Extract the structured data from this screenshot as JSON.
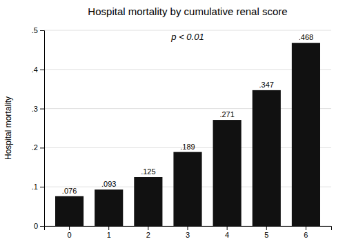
{
  "chart_data": {
    "type": "bar",
    "title": "Hospital mortality by cumulative renal score",
    "ylabel": "Hospital mortality",
    "categories": [
      0,
      1,
      2,
      3,
      4,
      5,
      6
    ],
    "values": [
      0.076,
      0.093,
      0.125,
      0.189,
      0.271,
      0.347,
      0.468
    ],
    "value_labels": [
      ".076",
      ".093",
      ".125",
      ".189",
      ".271",
      ".347",
      ".468"
    ],
    "data_labels": true,
    "color": "#111111",
    "ylim": [
      0,
      0.5
    ],
    "yticks": [
      0,
      {
        "value": 0.1,
        "label": ".1"
      },
      {
        "value": 0.2,
        "label": ".2"
      },
      {
        "value": 0.3,
        "label": ".3"
      },
      {
        "value": 0.4,
        "label": ".4"
      },
      {
        "value": 0.5,
        "label": ".5"
      }
    ],
    "grid": true,
    "annotation": "p < 0.01"
  }
}
